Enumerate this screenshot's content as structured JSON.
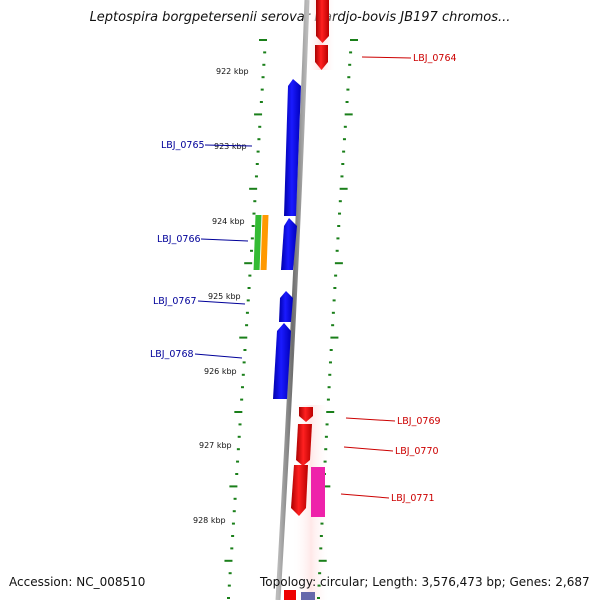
{
  "title": "Leptospira borgpetersenii serovar Hardjo-bovis JB197 chromos...",
  "accession": "Accession: NC_008510",
  "summary": "Topology: circular; Length: 3,576,473 bp; Genes: 2,687",
  "kbp_labels": [
    "922 kbp",
    "923 kbp",
    "924 kbp",
    "925 kbp",
    "926 kbp",
    "927 kbp",
    "928 kbp"
  ],
  "gene_labels": [
    {
      "text": "LBJ_0764",
      "strand": "plus"
    },
    {
      "text": "LBJ_0765",
      "strand": "minus"
    },
    {
      "text": "LBJ_0766",
      "strand": "minus"
    },
    {
      "text": "LBJ_0767",
      "strand": "minus"
    },
    {
      "text": "LBJ_0768",
      "strand": "minus"
    },
    {
      "text": "LBJ_0769",
      "strand": "plus"
    },
    {
      "text": "LBJ_0770",
      "strand": "plus"
    },
    {
      "text": "LBJ_0771",
      "strand": "plus"
    }
  ],
  "colors": {
    "minus_strand": "#0000ee",
    "plus_strand": "#ee0000",
    "minus_label": "#000099",
    "plus_label": "#cc0000",
    "tick": "#1a7f1a",
    "backbone": "#888888",
    "green_feature": "#33bb33",
    "orange_feature": "#ff9900",
    "magenta_feature": "#ee22aa"
  }
}
